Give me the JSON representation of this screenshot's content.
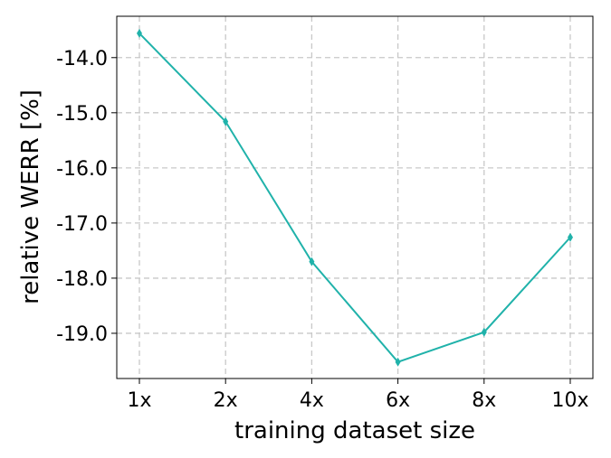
{
  "chart_data": {
    "type": "line",
    "x_label": "training dataset size",
    "y_label": "relative WERR [%]",
    "categories": [
      "1x",
      "2x",
      "4x",
      "6x",
      "8x",
      "10x"
    ],
    "series": [
      {
        "color": "#20b2aa",
        "values": [
          -13.56,
          -15.16,
          -17.7,
          -19.52,
          -18.98,
          -17.26
        ]
      }
    ],
    "ylim": [
      -19.82,
      -13.25
    ],
    "yticks": [
      {
        "value": -14,
        "label": "-14.0"
      },
      {
        "value": -15,
        "label": "-15.0"
      },
      {
        "value": -16,
        "label": "-16.0"
      },
      {
        "value": -17,
        "label": "-17.0"
      },
      {
        "value": -18,
        "label": "-18.0"
      },
      {
        "value": -19,
        "label": "-19.0"
      }
    ],
    "grid": true
  }
}
